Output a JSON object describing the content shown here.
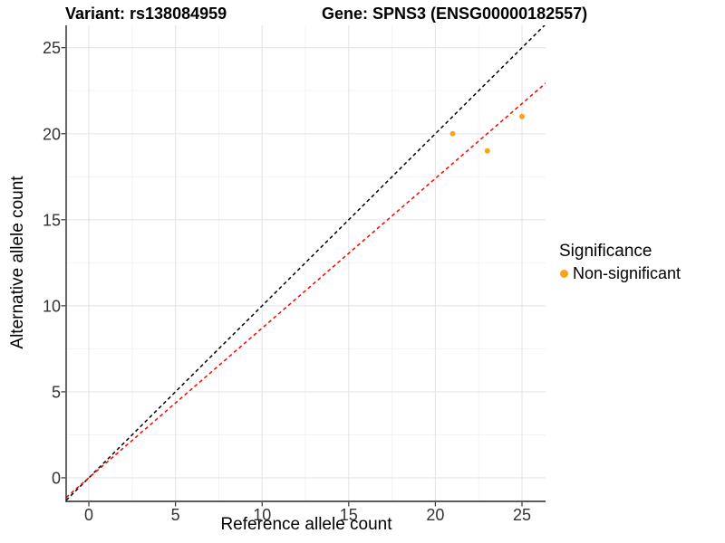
{
  "chart_data": {
    "type": "scatter",
    "title_left": "Variant: rs138084959",
    "title_right": "Gene: SPNS3 (ENSG00000182557)",
    "variant": "rs138084959",
    "gene_symbol": "SPNS3",
    "gene_id": "ENSG00000182557",
    "xlabel": "Reference allele count",
    "ylabel": "Alternative allele count",
    "xlim": [
      -1.31,
      26.36
    ],
    "ylim": [
      -1.37,
      26.3
    ],
    "x_ticks": [
      0,
      5,
      10,
      15,
      20,
      25
    ],
    "y_ticks": [
      0,
      5,
      10,
      15,
      20,
      25
    ],
    "x_minor_ticks": [
      2.5,
      7.5,
      12.5,
      17.5,
      22.5
    ],
    "y_minor_ticks": [
      2.5,
      7.5,
      12.5,
      17.5,
      22.5
    ],
    "grid": true,
    "series": [
      {
        "name": "Non-significant",
        "color": "#FAA21B",
        "points": [
          [
            21,
            20
          ],
          [
            23,
            19
          ],
          [
            25,
            21
          ]
        ]
      }
    ],
    "lines": [
      {
        "name": "identity-line",
        "slope": 1.0,
        "intercept": 0,
        "color": "#000000",
        "style": "dashed"
      },
      {
        "name": "expected-ratio-line",
        "slope": 0.87,
        "intercept": 0,
        "color": "#FF0000",
        "style": "dashed"
      }
    ],
    "legend": {
      "title": "Significance",
      "position": "right",
      "items": [
        {
          "label": "Non-significant",
          "color": "#FAA21B"
        }
      ]
    }
  }
}
